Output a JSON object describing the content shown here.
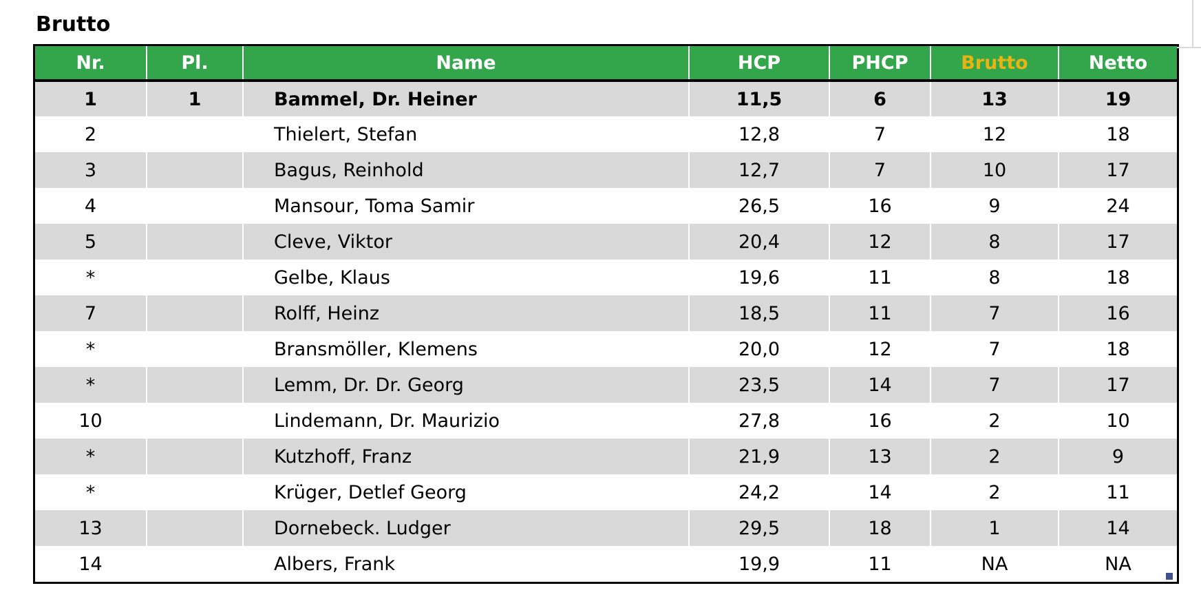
{
  "title": "Brutto",
  "table": {
    "columns": [
      {
        "key": "nr",
        "label": "Nr."
      },
      {
        "key": "pl",
        "label": "Pl."
      },
      {
        "key": "name",
        "label": "Name"
      },
      {
        "key": "hcp",
        "label": "HCP"
      },
      {
        "key": "phcp",
        "label": "PHCP"
      },
      {
        "key": "brutto",
        "label": "Brutto"
      },
      {
        "key": "netto",
        "label": "Netto"
      }
    ],
    "rows": [
      {
        "nr": "1",
        "pl": "1",
        "name": "Bammel, Dr. Heiner",
        "hcp": "11,5",
        "phcp": "6",
        "brutto": "13",
        "netto": "19",
        "emphasis": true
      },
      {
        "nr": "2",
        "pl": "",
        "name": "Thielert, Stefan",
        "hcp": "12,8",
        "phcp": "7",
        "brutto": "12",
        "netto": "18"
      },
      {
        "nr": "3",
        "pl": "",
        "name": "Bagus, Reinhold",
        "hcp": "12,7",
        "phcp": "7",
        "brutto": "10",
        "netto": "17"
      },
      {
        "nr": "4",
        "pl": "",
        "name": "Mansour, Toma Samir",
        "hcp": "26,5",
        "phcp": "16",
        "brutto": "9",
        "netto": "24"
      },
      {
        "nr": "5",
        "pl": "",
        "name": "Cleve, Viktor",
        "hcp": "20,4",
        "phcp": "12",
        "brutto": "8",
        "netto": "17"
      },
      {
        "nr": "*",
        "pl": "",
        "name": "Gelbe, Klaus",
        "hcp": "19,6",
        "phcp": "11",
        "brutto": "8",
        "netto": "18"
      },
      {
        "nr": "7",
        "pl": "",
        "name": "Rolff, Heinz",
        "hcp": "18,5",
        "phcp": "11",
        "brutto": "7",
        "netto": "16"
      },
      {
        "nr": "*",
        "pl": "",
        "name": "Bransmöller, Klemens",
        "hcp": "20,0",
        "phcp": "12",
        "brutto": "7",
        "netto": "18"
      },
      {
        "nr": "*",
        "pl": "",
        "name": "Lemm, Dr. Dr. Georg",
        "hcp": "23,5",
        "phcp": "14",
        "brutto": "7",
        "netto": "17"
      },
      {
        "nr": "10",
        "pl": "",
        "name": "Lindemann, Dr. Maurizio",
        "hcp": "27,8",
        "phcp": "16",
        "brutto": "2",
        "netto": "10"
      },
      {
        "nr": "*",
        "pl": "",
        "name": "Kutzhoff, Franz",
        "hcp": "21,9",
        "phcp": "13",
        "brutto": "2",
        "netto": "9"
      },
      {
        "nr": "*",
        "pl": "",
        "name": "Krüger, Detlef Georg",
        "hcp": "24,2",
        "phcp": "14",
        "brutto": "2",
        "netto": "11"
      },
      {
        "nr": "13",
        "pl": "",
        "name": "Dornebeck. Ludger",
        "hcp": "29,5",
        "phcp": "18",
        "brutto": "1",
        "netto": "14"
      },
      {
        "nr": "14",
        "pl": "",
        "name": "Albers, Frank",
        "hcp": "19,9",
        "phcp": "11",
        "brutto": "NA",
        "netto": "NA"
      }
    ]
  },
  "colors": {
    "header_bg": "#33A64C",
    "header_text": "#FFFFFF",
    "brutto_header_text": "#E8B414",
    "row_alt": "#D9D9D9",
    "row_bg": "#FFFFFF",
    "border": "#000000",
    "handle": "#41518F",
    "gridline": "#D9D9D9",
    "text": "#000000"
  }
}
